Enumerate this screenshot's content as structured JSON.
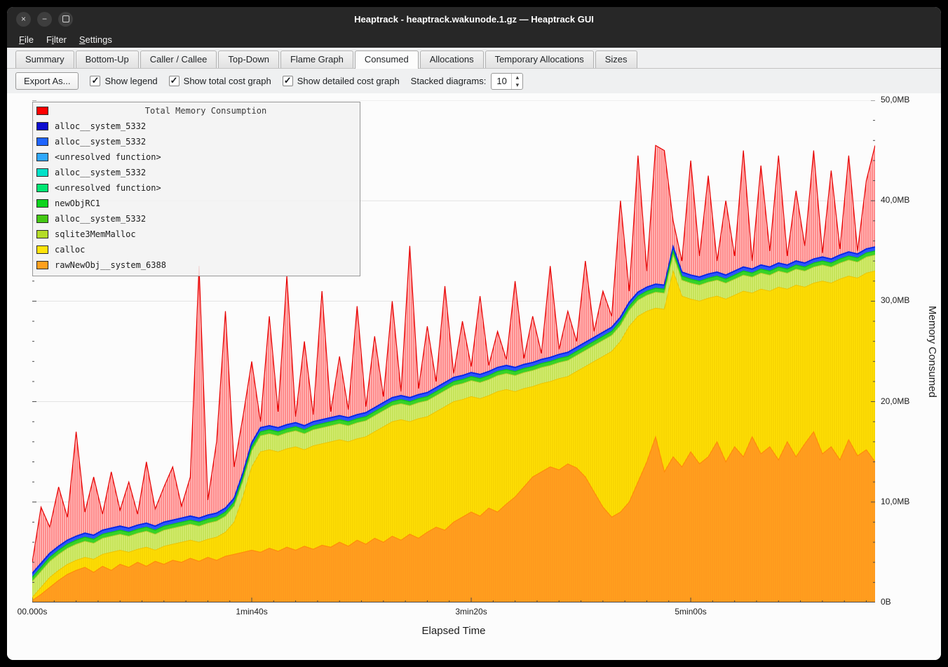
{
  "window": {
    "title": "Heaptrack - heaptrack.wakunode.1.gz — Heaptrack GUI"
  },
  "menubar": {
    "items": [
      {
        "label": "File",
        "accel": 0
      },
      {
        "label": "Filter",
        "accel": 1
      },
      {
        "label": "Settings",
        "accel": 0
      }
    ]
  },
  "tabs": {
    "items": [
      "Summary",
      "Bottom-Up",
      "Caller / Callee",
      "Top-Down",
      "Flame Graph",
      "Consumed",
      "Allocations",
      "Temporary Allocations",
      "Sizes"
    ],
    "active": "Consumed"
  },
  "toolbar": {
    "export_button": "Export As...",
    "checkboxes": [
      {
        "label": "Show legend",
        "checked": true
      },
      {
        "label": "Show total cost graph",
        "checked": true
      },
      {
        "label": "Show detailed cost graph",
        "checked": true
      }
    ],
    "stacked_label": "Stacked diagrams:",
    "stacked_value": "10"
  },
  "legend": {
    "title": "Total Memory Consumption",
    "title_color": "#ff0000",
    "items": [
      {
        "label": "alloc__system_5332",
        "color": "#0d0dcf"
      },
      {
        "label": "alloc__system_5332",
        "color": "#1e64ff"
      },
      {
        "label": "<unresolved function>",
        "color": "#2fa8ff"
      },
      {
        "label": "alloc__system_5332",
        "color": "#00e1c8"
      },
      {
        "label": "<unresolved function>",
        "color": "#00e673"
      },
      {
        "label": "newObjRC1",
        "color": "#0ed41e"
      },
      {
        "label": "alloc__system_5332",
        "color": "#44c814"
      },
      {
        "label": "sqlite3MemMalloc",
        "color": "#b4dc28"
      },
      {
        "label": "calloc",
        "color": "#ffe30a"
      },
      {
        "label": "rawNewObj__system_6388",
        "color": "#ffa01e"
      }
    ]
  },
  "chart_data": {
    "type": "area",
    "stacked": true,
    "cumulative_tops": true,
    "title": "Total Memory Consumption",
    "xlabel": "Elapsed Time",
    "ylabel": "Memory Consumed",
    "x_step_s": 4,
    "x_max_s": 384,
    "ylim_mb": [
      0,
      50
    ],
    "legend_position": "top-left",
    "grid": "horizontal",
    "x_ticks": [
      {
        "s": 0,
        "label": "00.000s"
      },
      {
        "s": 100,
        "label": "1min40s"
      },
      {
        "s": 200,
        "label": "3min20s"
      },
      {
        "s": 300,
        "label": "5min00s"
      }
    ],
    "y_ticks": [
      {
        "mb": 0,
        "label": "0B"
      },
      {
        "mb": 10,
        "label": "10,0MB"
      },
      {
        "mb": 20,
        "label": "20,0MB"
      },
      {
        "mb": 30,
        "label": "30,0MB"
      },
      {
        "mb": 40,
        "label": "40,0MB"
      },
      {
        "mb": 50,
        "label": "50,0MB"
      }
    ],
    "series": [
      {
        "name": "Total Memory Consumption",
        "color": "#e60000",
        "fill": "#ffc3c3",
        "hatch": "#ff5050",
        "stroke_w": 1.2,
        "values": [
          4,
          9.5,
          7.5,
          11.5,
          8.5,
          17,
          9,
          12.5,
          8.8,
          13,
          9.2,
          12,
          8.8,
          14,
          9.3,
          11.5,
          13.5,
          9.6,
          12.5,
          33.5,
          10.2,
          16,
          29,
          13.5,
          18.5,
          24,
          18,
          28.5,
          19,
          32.5,
          18.5,
          26,
          18.7,
          31,
          19,
          24.5,
          19.2,
          29.5,
          19.5,
          26.5,
          20.5,
          30,
          21,
          35.5,
          21.3,
          27.5,
          22,
          31.5,
          22.8,
          28,
          23.5,
          30.5,
          23.6,
          27,
          24.2,
          32,
          24.3,
          28.5,
          24.8,
          33.5,
          25.2,
          29,
          26,
          34,
          27,
          31,
          28.5,
          40,
          31,
          44.5,
          33,
          45.5,
          45,
          38,
          34,
          44,
          34.5,
          42.5,
          34,
          40,
          34.5,
          45,
          34,
          43.5,
          35,
          44.5,
          34.5,
          41,
          35.5,
          45,
          34.8,
          43,
          35.2,
          44.5,
          35,
          42,
          45.5
        ]
      },
      {
        "name": "alloc__system_5332",
        "color": "#0a28e6",
        "fill": "#2d55ff",
        "stroke_w": 2,
        "values": [
          2.9,
          3.9,
          4.9,
          5.6,
          6.2,
          6.6,
          6.9,
          6.7,
          7.2,
          7.4,
          7.6,
          7.4,
          7.7,
          7.9,
          7.6,
          8,
          8.2,
          8.4,
          8.6,
          8.4,
          8.7,
          8.9,
          9.4,
          10.4,
          12.9,
          15.9,
          17.4,
          17.6,
          17.4,
          17.7,
          17.9,
          17.6,
          18,
          18.2,
          18.4,
          18.6,
          18.4,
          18.7,
          18.9,
          19.4,
          19.9,
          20.4,
          20.6,
          20.4,
          20.7,
          20.9,
          21.4,
          21.9,
          22.4,
          22.6,
          22.9,
          22.7,
          23,
          23.4,
          23.6,
          23.4,
          23.7,
          23.9,
          24.2,
          24.4,
          24.7,
          24.9,
          25.4,
          25.9,
          26.4,
          26.9,
          27.4,
          28.4,
          29.9,
          30.9,
          31.4,
          31.7,
          31.6,
          35.4,
          32.9,
          32.6,
          32.4,
          32.7,
          32.9,
          32.6,
          33,
          33.4,
          33.2,
          33.6,
          33.4,
          33.8,
          33.6,
          34,
          33.8,
          34.2,
          34.4,
          34.2,
          34.6,
          34.9,
          34.7,
          35.2,
          35.4
        ]
      },
      {
        "name": "newObjRC1 / unresolved greens",
        "color": "#0fbe23",
        "fill": "#37d228",
        "stroke_w": 1.4,
        "values": [
          2.5,
          3.5,
          4.5,
          5.2,
          5.8,
          6.2,
          6.5,
          6.3,
          6.8,
          7,
          7.2,
          7,
          7.3,
          7.5,
          7.2,
          7.6,
          7.8,
          8,
          8.2,
          8,
          8.3,
          8.5,
          9,
          10,
          12.5,
          15.5,
          17,
          17.2,
          17,
          17.3,
          17.5,
          17.2,
          17.6,
          17.8,
          18,
          18.2,
          18,
          18.3,
          18.5,
          19,
          19.5,
          20,
          20.2,
          20,
          20.3,
          20.5,
          21,
          21.5,
          22,
          22.2,
          22.5,
          22.3,
          22.6,
          23,
          23.2,
          23,
          23.3,
          23.5,
          23.8,
          24,
          24.3,
          24.5,
          25,
          25.5,
          26,
          26.5,
          27,
          28,
          29.5,
          30.5,
          31,
          31.3,
          31.2,
          35,
          32.5,
          32.2,
          32,
          32.3,
          32.5,
          32.2,
          32.6,
          33,
          32.8,
          33.2,
          33,
          33.4,
          33.2,
          33.6,
          33.4,
          33.8,
          34,
          33.8,
          34.2,
          34.5,
          34.3,
          34.8,
          35
        ]
      },
      {
        "name": "sqlite3MemMalloc",
        "color": "#a8cc2a",
        "fill": "#d6ee74",
        "hatch": "#b6d83e",
        "stroke_w": 1,
        "values": [
          2.1,
          3.1,
          4.1,
          4.8,
          5.4,
          5.8,
          6.1,
          5.9,
          6.4,
          6.6,
          6.8,
          6.6,
          6.9,
          7.1,
          6.8,
          7.2,
          7.4,
          7.6,
          7.8,
          7.6,
          7.9,
          8.1,
          8.6,
          9.6,
          12.1,
          15.1,
          16.6,
          16.8,
          16.6,
          16.9,
          17.1,
          16.8,
          17.2,
          17.4,
          17.6,
          17.8,
          17.6,
          17.9,
          18.1,
          18.6,
          19.1,
          19.6,
          19.8,
          19.6,
          19.9,
          20.1,
          20.6,
          21.1,
          21.6,
          21.8,
          22.1,
          21.9,
          22.2,
          22.6,
          22.8,
          22.6,
          22.9,
          23.1,
          23.4,
          23.6,
          23.9,
          24.1,
          24.6,
          25.1,
          25.6,
          26.1,
          26.6,
          27.6,
          29.1,
          30.1,
          30.6,
          30.9,
          30.8,
          34.6,
          32.1,
          31.8,
          31.6,
          31.9,
          32.1,
          31.8,
          32.2,
          32.6,
          32.4,
          32.8,
          32.6,
          33,
          32.8,
          33.2,
          33,
          33.4,
          33.6,
          33.4,
          33.8,
          34.1,
          33.9,
          34.4,
          34.6
        ]
      },
      {
        "name": "calloc",
        "color": "#eec400",
        "fill": "#ffdf05",
        "hatch": "#f2cd00",
        "stroke_w": 1,
        "values": [
          0.5,
          1.5,
          2.5,
          3.2,
          3.8,
          4.2,
          4.5,
          4.3,
          4.8,
          5,
          5.2,
          5,
          5.3,
          5.5,
          5.2,
          5.6,
          5.8,
          6,
          6.2,
          6,
          6.3,
          6.5,
          7,
          8,
          10.5,
          13.5,
          15,
          15.2,
          15,
          15.3,
          15.5,
          15.2,
          15.6,
          15.8,
          16,
          16.2,
          16,
          16.3,
          16.5,
          17,
          17.5,
          18,
          18.2,
          18,
          18.3,
          18.5,
          19,
          19.5,
          20,
          20.2,
          20.5,
          20.3,
          20.6,
          21,
          21.2,
          21,
          21.3,
          21.5,
          21.8,
          22,
          22.3,
          22.5,
          23,
          23.5,
          24,
          24.5,
          25,
          26,
          27.5,
          28.5,
          29,
          29.3,
          29.2,
          33,
          30.5,
          30.2,
          30,
          30.3,
          30.5,
          30.2,
          30.6,
          31,
          30.8,
          31.2,
          31,
          31.4,
          31.2,
          31.6,
          31.4,
          31.8,
          32,
          31.8,
          32.2,
          32.5,
          32.3,
          32.8,
          33
        ]
      },
      {
        "name": "rawNewObj__system_6388",
        "color": "#ff8c0a",
        "fill": "#ffa01e",
        "hatch": "#ff941e",
        "stroke_w": 1.2,
        "values": [
          0.2,
          0.8,
          1.5,
          2.2,
          2.8,
          3.2,
          3.5,
          3,
          3.6,
          3.2,
          3.8,
          3.5,
          4,
          3.6,
          4.1,
          3.8,
          4.2,
          4,
          4.4,
          4.1,
          4.5,
          4.2,
          4.6,
          4.8,
          5,
          5.2,
          5,
          5.4,
          5.1,
          5.5,
          5.2,
          5.6,
          5.3,
          5.7,
          5.5,
          6,
          5.6,
          6.2,
          5.8,
          6.4,
          6,
          6.6,
          6.2,
          6.8,
          6.4,
          7,
          7.5,
          7.2,
          8,
          8.5,
          9,
          8.6,
          9.4,
          9,
          9.8,
          10.5,
          11.5,
          12.5,
          13,
          13.5,
          13.2,
          13.8,
          13.4,
          12.5,
          11,
          9.5,
          8.5,
          9,
          10,
          12,
          14,
          16.5,
          13,
          14.5,
          13.5,
          15,
          13.8,
          14.5,
          16,
          14,
          15.5,
          14.5,
          16.5,
          14.8,
          15.5,
          14.2,
          16,
          14.5,
          15.8,
          17,
          14.8,
          15.5,
          14.2,
          16.2,
          14.6,
          15.2,
          14
        ]
      }
    ]
  }
}
